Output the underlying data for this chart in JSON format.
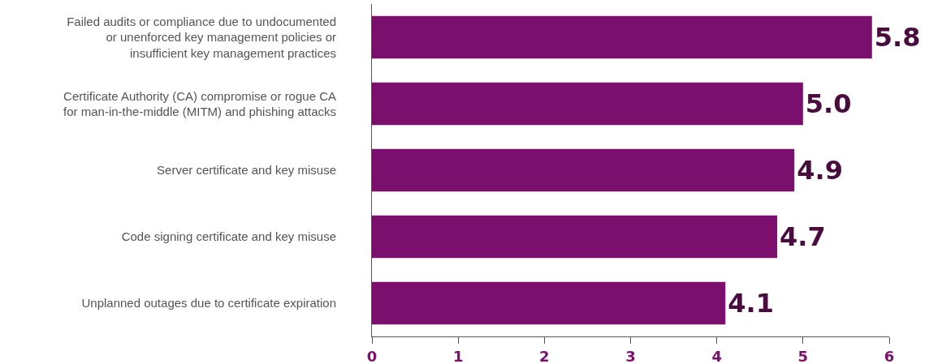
{
  "chart_data": {
    "type": "bar",
    "orientation": "horizontal",
    "categories": [
      "Failed audits or compliance due to undocumented or unenforced key management policies or insufficient key management practices",
      "Certificate Authority (CA) compromise or rogue CA for man-in-the-middle (MITM) and phishing attacks",
      "Server certificate and key misuse",
      "Code signing certificate and key misuse",
      "Unplanned outages due to certificate expiration"
    ],
    "values": [
      5.8,
      5.0,
      4.9,
      4.7,
      4.1
    ],
    "value_labels": [
      "5.8",
      "5.0",
      "4.9",
      "4.7",
      "4.1"
    ],
    "color": "#7b0f6e",
    "xlim": [
      0,
      6
    ],
    "xticks": [
      0,
      1,
      2,
      3,
      4,
      5,
      6
    ],
    "grid": false
  }
}
